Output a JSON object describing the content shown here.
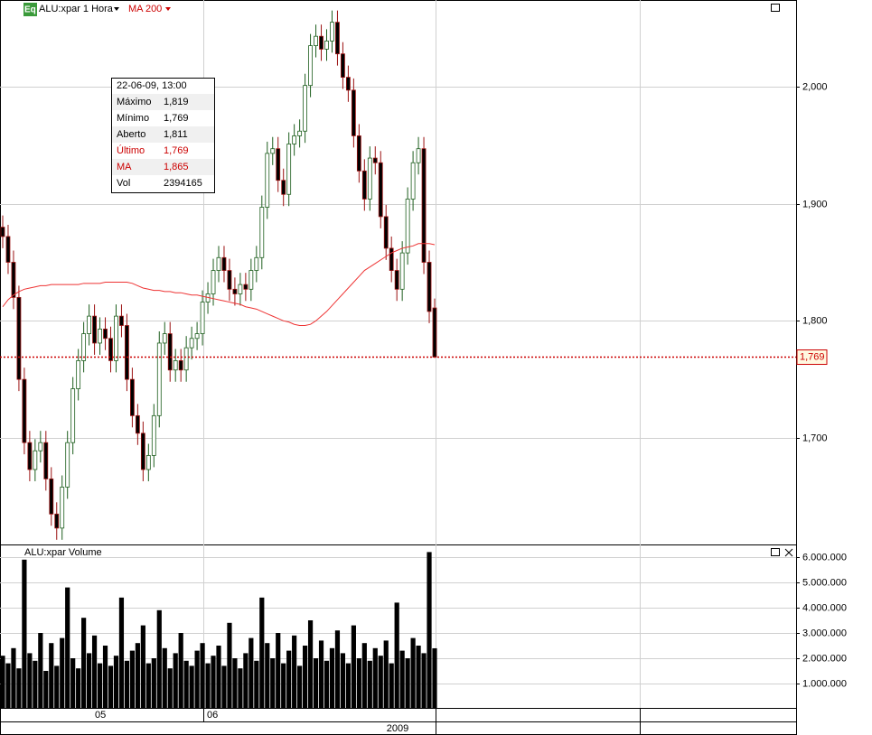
{
  "toolbar": {
    "icon": "Eq",
    "symbol": "ALU:xpar 1 Hora",
    "indicator": "MA 200"
  },
  "chart_data": [
    {
      "type": "candlestick",
      "open": [
        1.88,
        1.872,
        1.85,
        1.82,
        1.75,
        1.696,
        1.673,
        1.689,
        1.696,
        1.665,
        1.635,
        1.623,
        1.658,
        1.696,
        1.742,
        1.766,
        1.789,
        1.804,
        1.781,
        1.793,
        1.785,
        1.766,
        1.804,
        1.796,
        1.75,
        1.719,
        1.704,
        1.673,
        1.685,
        1.719,
        1.781,
        1.789,
        1.758,
        1.766,
        1.758,
        1.777,
        1.785,
        1.789,
        1.816,
        1.823,
        1.843,
        1.854,
        1.843,
        1.827,
        1.823,
        1.831,
        1.827,
        1.843,
        1.854,
        1.897,
        1.943,
        1.947,
        1.92,
        1.908,
        1.951,
        1.958,
        1.962,
        2.001,
        2.035,
        2.043,
        2.032,
        2.039,
        2.055,
        2.028,
        2.008,
        1.997,
        1.958,
        1.928,
        1.904,
        1.939,
        1.935,
        1.889,
        1.862,
        1.843,
        1.827,
        1.858,
        1.904,
        1.935,
        1.947,
        1.85,
        1.811
      ],
      "high": [
        1.89,
        1.882,
        1.86,
        1.83,
        1.76,
        1.706,
        1.699,
        1.706,
        1.706,
        1.675,
        1.645,
        1.668,
        1.706,
        1.752,
        1.776,
        1.799,
        1.814,
        1.814,
        1.803,
        1.803,
        1.795,
        1.814,
        1.814,
        1.806,
        1.76,
        1.729,
        1.714,
        1.695,
        1.729,
        1.791,
        1.799,
        1.799,
        1.776,
        1.776,
        1.787,
        1.795,
        1.799,
        1.826,
        1.833,
        1.853,
        1.864,
        1.864,
        1.853,
        1.837,
        1.841,
        1.841,
        1.853,
        1.864,
        1.907,
        1.953,
        1.957,
        1.957,
        1.93,
        1.961,
        1.968,
        1.972,
        2.011,
        2.045,
        2.053,
        2.053,
        2.049,
        2.065,
        2.065,
        2.038,
        2.018,
        2.007,
        1.968,
        1.938,
        1.949,
        1.949,
        1.945,
        1.899,
        1.872,
        1.853,
        1.868,
        1.914,
        1.945,
        1.957,
        1.957,
        1.86,
        1.819
      ],
      "low": [
        1.862,
        1.84,
        1.81,
        1.74,
        1.686,
        1.663,
        1.663,
        1.679,
        1.655,
        1.625,
        1.613,
        1.613,
        1.648,
        1.686,
        1.732,
        1.756,
        1.779,
        1.771,
        1.771,
        1.775,
        1.756,
        1.756,
        1.786,
        1.74,
        1.709,
        1.694,
        1.663,
        1.663,
        1.675,
        1.709,
        1.771,
        1.748,
        1.748,
        1.748,
        1.748,
        1.767,
        1.775,
        1.779,
        1.806,
        1.813,
        1.833,
        1.833,
        1.817,
        1.813,
        1.813,
        1.817,
        1.817,
        1.833,
        1.844,
        1.887,
        1.933,
        1.91,
        1.898,
        1.898,
        1.941,
        1.948,
        1.952,
        1.991,
        2.025,
        2.022,
        2.022,
        2.029,
        2.018,
        1.998,
        1.987,
        1.948,
        1.918,
        1.894,
        1.894,
        1.925,
        1.879,
        1.852,
        1.833,
        1.817,
        1.817,
        1.848,
        1.894,
        1.925,
        1.84,
        1.798,
        1.769
      ],
      "close": [
        1.872,
        1.85,
        1.82,
        1.75,
        1.696,
        1.673,
        1.689,
        1.696,
        1.665,
        1.635,
        1.623,
        1.658,
        1.696,
        1.742,
        1.766,
        1.789,
        1.804,
        1.781,
        1.793,
        1.785,
        1.766,
        1.804,
        1.796,
        1.75,
        1.719,
        1.704,
        1.673,
        1.685,
        1.719,
        1.781,
        1.789,
        1.758,
        1.766,
        1.758,
        1.777,
        1.785,
        1.789,
        1.816,
        1.823,
        1.843,
        1.854,
        1.843,
        1.827,
        1.823,
        1.831,
        1.827,
        1.843,
        1.854,
        1.897,
        1.943,
        1.947,
        1.92,
        1.908,
        1.951,
        1.958,
        1.962,
        2.001,
        2.035,
        2.043,
        2.032,
        2.039,
        2.055,
        2.028,
        2.008,
        1.997,
        1.958,
        1.928,
        1.904,
        1.939,
        1.935,
        1.889,
        1.862,
        1.843,
        1.827,
        1.858,
        1.904,
        1.935,
        1.947,
        1.85,
        1.808,
        1.769
      ],
      "up_color": "#1d5e1d",
      "down_color": "#9b1010",
      "ma": {
        "color": "#ee3333",
        "values": [
          1.812,
          1.818,
          1.822,
          1.825,
          1.827,
          1.828,
          1.829,
          1.83,
          1.83,
          1.831,
          1.831,
          1.831,
          1.831,
          1.831,
          1.831,
          1.832,
          1.832,
          1.832,
          1.832,
          1.833,
          1.833,
          1.833,
          1.833,
          1.833,
          1.832,
          1.83,
          1.828,
          1.827,
          1.826,
          1.826,
          1.825,
          1.825,
          1.824,
          1.824,
          1.823,
          1.822,
          1.822,
          1.821,
          1.82,
          1.819,
          1.818,
          1.817,
          1.816,
          1.815,
          1.814,
          1.812,
          1.811,
          1.81,
          1.808,
          1.806,
          1.804,
          1.802,
          1.8,
          1.799,
          1.797,
          1.796,
          1.796,
          1.797,
          1.8,
          1.804,
          1.808,
          1.813,
          1.818,
          1.823,
          1.828,
          1.833,
          1.838,
          1.843,
          1.846,
          1.849,
          1.852,
          1.855,
          1.858,
          1.86,
          1.862,
          1.863,
          1.864,
          1.866,
          1.866,
          1.866,
          1.865
        ]
      },
      "last_price_label": "1,769",
      "last_color": "#cc0000",
      "ylim": [
        1.609,
        2.074
      ],
      "yticks": [
        {
          "value": 1.7,
          "label": "1,700"
        },
        {
          "value": 1.8,
          "label": "1,800"
        },
        {
          "value": 1.9,
          "label": "1,900"
        },
        {
          "value": 2.0,
          "label": "2,000"
        }
      ],
      "grid": true
    },
    {
      "type": "bar",
      "title": "ALU:xpar Volume",
      "color": "#000000",
      "values": [
        2100000,
        1800000,
        2400000,
        1600000,
        5900000,
        2200000,
        1900000,
        3000000,
        1500000,
        2600000,
        1700000,
        2800000,
        4800000,
        2000000,
        1600000,
        3600000,
        2200000,
        2900000,
        1800000,
        2500000,
        1700000,
        2100000,
        4400000,
        1900000,
        2300000,
        2600000,
        3300000,
        1800000,
        2000000,
        3900000,
        2400000,
        1600000,
        2200000,
        3000000,
        1900000,
        1700000,
        2300000,
        2600000,
        1800000,
        2100000,
        2500000,
        1700000,
        3400000,
        2000000,
        1600000,
        2200000,
        2800000,
        1900000,
        4400000,
        2600000,
        2000000,
        3000000,
        1800000,
        2300000,
        2900000,
        1700000,
        2500000,
        3500000,
        2000000,
        2700000,
        1900000,
        2400000,
        3100000,
        2200000,
        1800000,
        3300000,
        2000000,
        2600000,
        1900000,
        2400000,
        2100000,
        2700000,
        1800000,
        4200000,
        2300000,
        2000000,
        2800000,
        2500000,
        2200000,
        6200000,
        2394165
      ],
      "ylim": [
        0,
        6500000
      ],
      "yticks": [
        {
          "value": 1000000,
          "label": "1.000.000"
        },
        {
          "value": 2000000,
          "label": "2.000.000"
        },
        {
          "value": 3000000,
          "label": "3.000.000"
        },
        {
          "value": 4000000,
          "label": "4.000.000"
        },
        {
          "value": 5000000,
          "label": "5.000.000"
        },
        {
          "value": 6000000,
          "label": "6.000.000"
        }
      ],
      "grid": true
    }
  ],
  "time_axis": {
    "labels": [
      "05",
      "06"
    ],
    "year": "2009"
  },
  "tooltip": {
    "date": "22-06-09, 13:00",
    "rows": [
      {
        "label": "Máximo",
        "value": "1,819"
      },
      {
        "label": "Mínimo",
        "value": "1,769"
      },
      {
        "label": "Aberto",
        "value": "1,811"
      },
      {
        "label": "Último",
        "value": "1,769"
      },
      {
        "label": "MA",
        "value": "1,865"
      },
      {
        "label": "Vol",
        "value": "2394165"
      }
    ]
  }
}
